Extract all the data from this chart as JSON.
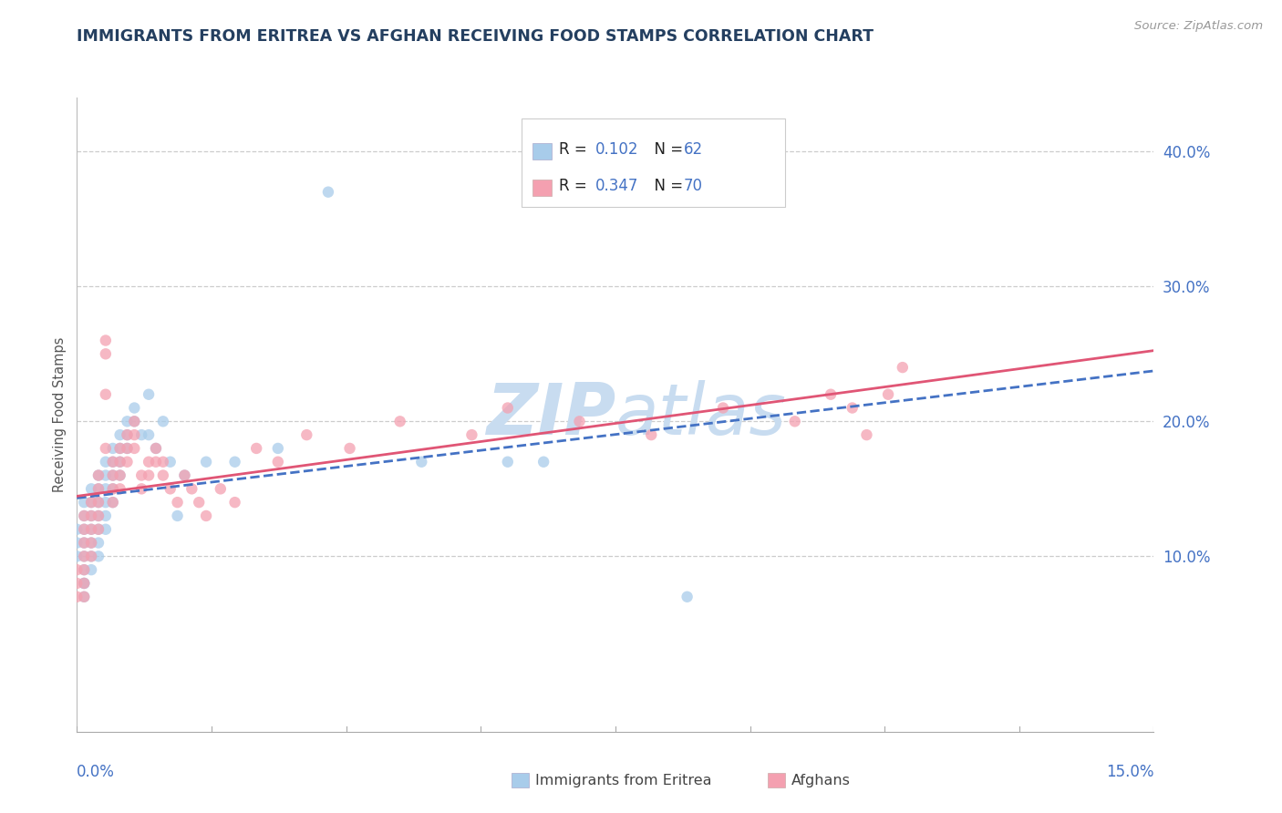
{
  "title": "IMMIGRANTS FROM ERITREA VS AFGHAN RECEIVING FOOD STAMPS CORRELATION CHART",
  "source": "Source: ZipAtlas.com",
  "xmin": 0.0,
  "xmax": 0.15,
  "ymin": -0.03,
  "ymax": 0.44,
  "legend_eritrea_R": "R = ",
  "legend_eritrea_Rval": "0.102",
  "legend_eritrea_N": "  N = ",
  "legend_eritrea_Nval": "62",
  "legend_afghan_R": "R = ",
  "legend_afghan_Rval": "0.347",
  "legend_afghan_N": "  N = ",
  "legend_afghan_Nval": "70",
  "color_eritrea": "#A8CCEA",
  "color_afghan": "#F4A0B0",
  "color_eritrea_line": "#4472C4",
  "color_afghan_line": "#E05575",
  "color_axis_labels": "#4472C4",
  "color_title": "#243F60",
  "color_rval": "#4472C4",
  "color_nval": "#4472C4",
  "color_rlabel": "#222222",
  "color_nlabel": "#222222",
  "color_grid": "#CCCCCC",
  "watermark_color": "#C8DCF0",
  "ytick_vals": [
    0.1,
    0.2,
    0.3,
    0.4
  ],
  "ytick_labels": [
    "10.0%",
    "20.0%",
    "30.0%",
    "40.0%"
  ],
  "eritrea_x": [
    0.0,
    0.0,
    0.0,
    0.001,
    0.001,
    0.001,
    0.001,
    0.001,
    0.001,
    0.001,
    0.001,
    0.001,
    0.002,
    0.002,
    0.002,
    0.002,
    0.002,
    0.002,
    0.002,
    0.003,
    0.003,
    0.003,
    0.003,
    0.003,
    0.003,
    0.003,
    0.004,
    0.004,
    0.004,
    0.004,
    0.004,
    0.004,
    0.005,
    0.005,
    0.005,
    0.005,
    0.005,
    0.006,
    0.006,
    0.006,
    0.006,
    0.007,
    0.007,
    0.007,
    0.008,
    0.008,
    0.009,
    0.01,
    0.01,
    0.011,
    0.012,
    0.013,
    0.014,
    0.015,
    0.018,
    0.022,
    0.028,
    0.035,
    0.048,
    0.06,
    0.065,
    0.085
  ],
  "eritrea_y": [
    0.12,
    0.11,
    0.1,
    0.14,
    0.13,
    0.12,
    0.11,
    0.1,
    0.09,
    0.08,
    0.08,
    0.07,
    0.15,
    0.14,
    0.13,
    0.12,
    0.11,
    0.1,
    0.09,
    0.16,
    0.15,
    0.14,
    0.13,
    0.12,
    0.11,
    0.1,
    0.17,
    0.16,
    0.15,
    0.14,
    0.13,
    0.12,
    0.18,
    0.17,
    0.16,
    0.15,
    0.14,
    0.19,
    0.18,
    0.17,
    0.16,
    0.2,
    0.19,
    0.18,
    0.21,
    0.2,
    0.19,
    0.22,
    0.19,
    0.18,
    0.2,
    0.17,
    0.13,
    0.16,
    0.17,
    0.17,
    0.18,
    0.37,
    0.17,
    0.17,
    0.17,
    0.07
  ],
  "afghan_x": [
    0.0,
    0.0,
    0.0,
    0.001,
    0.001,
    0.001,
    0.001,
    0.001,
    0.001,
    0.001,
    0.002,
    0.002,
    0.002,
    0.002,
    0.002,
    0.003,
    0.003,
    0.003,
    0.003,
    0.003,
    0.004,
    0.004,
    0.004,
    0.004,
    0.005,
    0.005,
    0.005,
    0.005,
    0.006,
    0.006,
    0.006,
    0.006,
    0.007,
    0.007,
    0.007,
    0.008,
    0.008,
    0.008,
    0.009,
    0.009,
    0.01,
    0.01,
    0.011,
    0.011,
    0.012,
    0.012,
    0.013,
    0.014,
    0.015,
    0.016,
    0.017,
    0.018,
    0.02,
    0.022,
    0.025,
    0.028,
    0.032,
    0.038,
    0.045,
    0.055,
    0.06,
    0.07,
    0.08,
    0.09,
    0.1,
    0.105,
    0.108,
    0.11,
    0.113,
    0.115
  ],
  "afghan_y": [
    0.09,
    0.08,
    0.07,
    0.13,
    0.12,
    0.11,
    0.1,
    0.09,
    0.08,
    0.07,
    0.14,
    0.13,
    0.12,
    0.11,
    0.1,
    0.16,
    0.15,
    0.14,
    0.13,
    0.12,
    0.26,
    0.25,
    0.22,
    0.18,
    0.17,
    0.16,
    0.15,
    0.14,
    0.18,
    0.17,
    0.16,
    0.15,
    0.19,
    0.18,
    0.17,
    0.2,
    0.19,
    0.18,
    0.16,
    0.15,
    0.17,
    0.16,
    0.18,
    0.17,
    0.17,
    0.16,
    0.15,
    0.14,
    0.16,
    0.15,
    0.14,
    0.13,
    0.15,
    0.14,
    0.18,
    0.17,
    0.19,
    0.18,
    0.2,
    0.19,
    0.21,
    0.2,
    0.19,
    0.21,
    0.2,
    0.22,
    0.21,
    0.19,
    0.22,
    0.24
  ]
}
